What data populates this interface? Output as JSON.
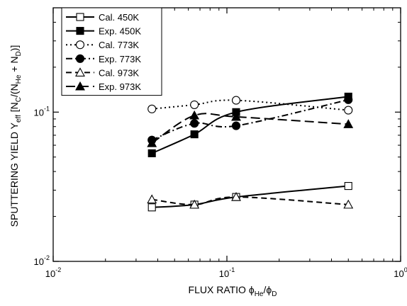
{
  "chart_data": {
    "type": "scatter",
    "x_scale": "log",
    "y_scale": "log",
    "xlim": [
      0.01,
      1
    ],
    "ylim": [
      0.01,
      0.5
    ],
    "grid": false,
    "legend_position": "top-left",
    "x_ticks": [
      {
        "value": 0.01,
        "base": "10",
        "exp": "-2"
      },
      {
        "value": 0.1,
        "base": "10",
        "exp": "-1"
      },
      {
        "value": 1,
        "base": "10",
        "exp": "0"
      }
    ],
    "y_ticks": [
      {
        "value": 0.01,
        "base": "10",
        "exp": "-2"
      },
      {
        "value": 0.1,
        "base": "10",
        "exp": "-1"
      }
    ],
    "xlabel": {
      "main": "FLUX RATIO ϕ",
      "sub1": "He",
      "mid": "/ϕ",
      "sub2": "D"
    },
    "ylabel": {
      "parts": [
        {
          "text": "SPUTTERING YIELD Y",
          "sub": false
        },
        {
          "text": "eff",
          "sub": true
        },
        {
          "text": " [N",
          "sub": false
        },
        {
          "text": "C",
          "sub": true
        },
        {
          "text": "/(N",
          "sub": false
        },
        {
          "text": "He",
          "sub": true
        },
        {
          "text": " + N",
          "sub": false
        },
        {
          "text": "D",
          "sub": true
        },
        {
          "text": ")]",
          "sub": false
        }
      ]
    },
    "series": [
      {
        "name": "Cal. 450K",
        "marker": "square",
        "filled": false,
        "dash": "solid",
        "x": [
          0.037,
          0.065,
          0.113,
          0.5
        ],
        "y": [
          0.023,
          0.024,
          0.027,
          0.032
        ]
      },
      {
        "name": "Exp. 450K",
        "marker": "square",
        "filled": true,
        "dash": "solid",
        "x": [
          0.037,
          0.065,
          0.113,
          0.5
        ],
        "y": [
          0.053,
          0.071,
          0.1,
          0.127
        ]
      },
      {
        "name": "Cal. 773K",
        "marker": "circle",
        "filled": false,
        "dash": "dot",
        "x": [
          0.037,
          0.065,
          0.113,
          0.5
        ],
        "y": [
          0.105,
          0.112,
          0.12,
          0.103
        ]
      },
      {
        "name": "Exp. 773K",
        "marker": "circle",
        "filled": true,
        "dash": "dashdot",
        "x": [
          0.037,
          0.065,
          0.113,
          0.5
        ],
        "y": [
          0.065,
          0.084,
          0.081,
          0.121
        ]
      },
      {
        "name": "Cal. 973K",
        "marker": "triangle",
        "filled": false,
        "dash": "dash",
        "x": [
          0.037,
          0.065,
          0.113,
          0.5
        ],
        "y": [
          0.026,
          0.024,
          0.027,
          0.024
        ]
      },
      {
        "name": "Exp. 973K",
        "marker": "triangle",
        "filled": true,
        "dash": "longdash",
        "x": [
          0.037,
          0.065,
          0.113,
          0.5
        ],
        "y": [
          0.062,
          0.095,
          0.093,
          0.083
        ]
      }
    ]
  }
}
